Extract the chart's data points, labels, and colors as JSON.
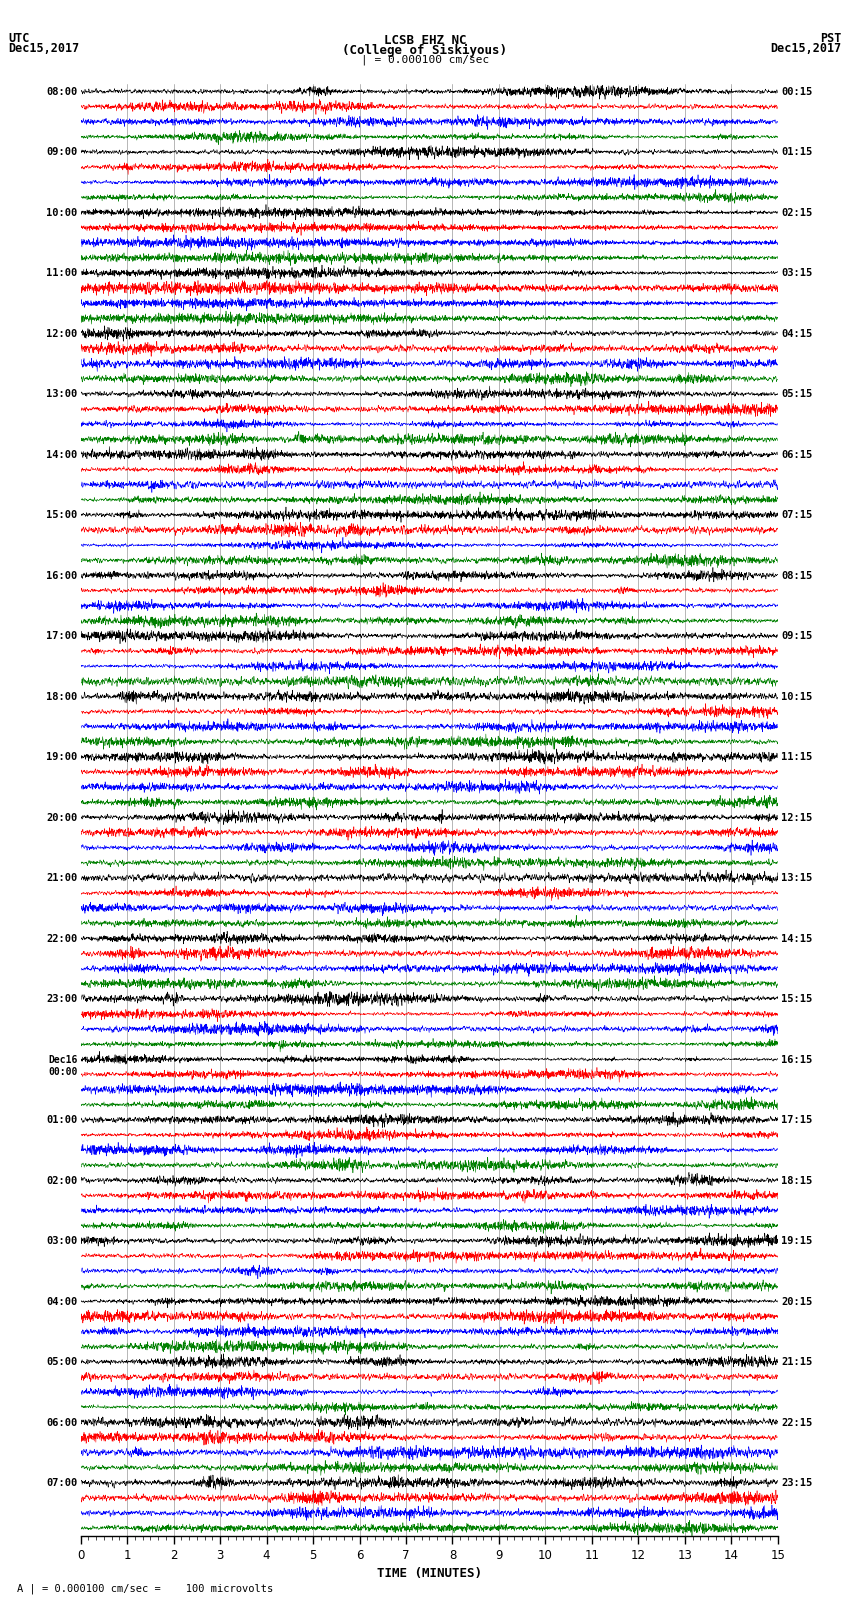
{
  "title_line1": "LCSB EHZ NC",
  "title_line2": "(College of Siskiyous)",
  "title_scale": "| = 0.000100 cm/sec",
  "left_header_line1": "UTC",
  "left_header_line2": "Dec15,2017",
  "right_header_line1": "PST",
  "right_header_line2": "Dec15,2017",
  "footer_text": "A | = 0.000100 cm/sec =    100 microvolts",
  "xlabel": "TIME (MINUTES)",
  "left_times": [
    "08:00",
    "09:00",
    "10:00",
    "11:00",
    "12:00",
    "13:00",
    "14:00",
    "15:00",
    "16:00",
    "17:00",
    "18:00",
    "19:00",
    "20:00",
    "21:00",
    "22:00",
    "23:00",
    "Dec16\n00:00",
    "01:00",
    "02:00",
    "03:00",
    "04:00",
    "05:00",
    "06:00",
    "07:00"
  ],
  "right_times": [
    "00:15",
    "01:15",
    "02:15",
    "03:15",
    "04:15",
    "05:15",
    "06:15",
    "07:15",
    "08:15",
    "09:15",
    "10:15",
    "11:15",
    "12:15",
    "13:15",
    "14:15",
    "15:15",
    "16:15",
    "17:15",
    "18:15",
    "19:15",
    "20:15",
    "21:15",
    "22:15",
    "23:15"
  ],
  "n_rows": 24,
  "traces_per_row": 4,
  "colors": [
    "black",
    "red",
    "blue",
    "green"
  ],
  "background_color": "#ffffff",
  "plot_bg_color": "#ffffff",
  "minutes": 15,
  "seed": 42,
  "n_pts": 3000,
  "earthquake_rows": [
    2,
    3
  ],
  "high_noise_rows": [
    8,
    9,
    10,
    11,
    12,
    13,
    14,
    15,
    16,
    17,
    18,
    19,
    20,
    21,
    22,
    23
  ]
}
